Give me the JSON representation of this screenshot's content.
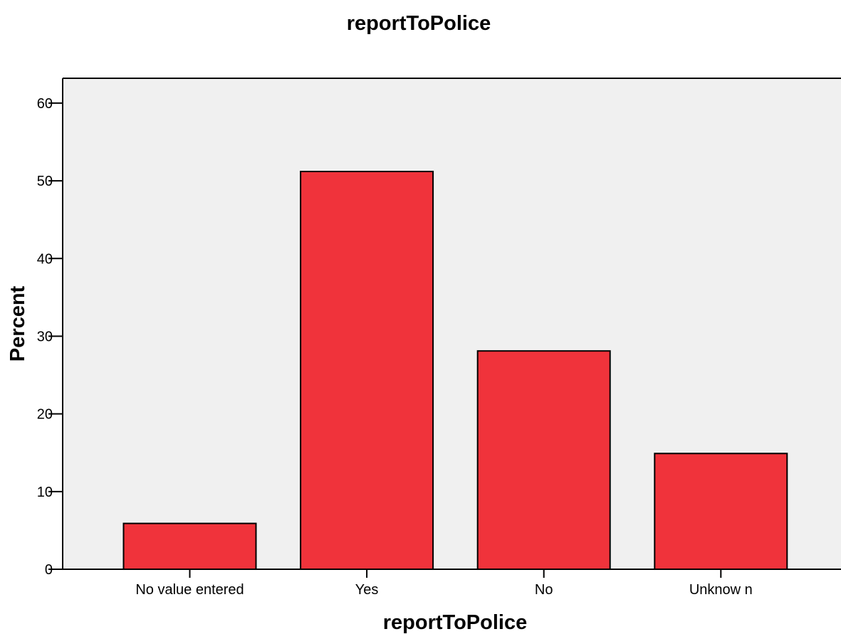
{
  "chart_data": {
    "type": "bar",
    "title": "reportToPolice",
    "xlabel": "reportToPolice",
    "ylabel": "Percent",
    "categories": [
      "No value entered",
      "Yes",
      "No",
      "Unknow n"
    ],
    "values": [
      5.9,
      51.2,
      28.1,
      14.9
    ],
    "ylim": [
      0,
      63.2
    ],
    "yticks": [
      0,
      10,
      20,
      30,
      40,
      50,
      60
    ],
    "grid": false,
    "legend": "none",
    "colors": {
      "bar_fill": "#f0333b",
      "bar_stroke": "#000000",
      "plot_background": "#f0f0f0",
      "axis": "#000000"
    }
  }
}
